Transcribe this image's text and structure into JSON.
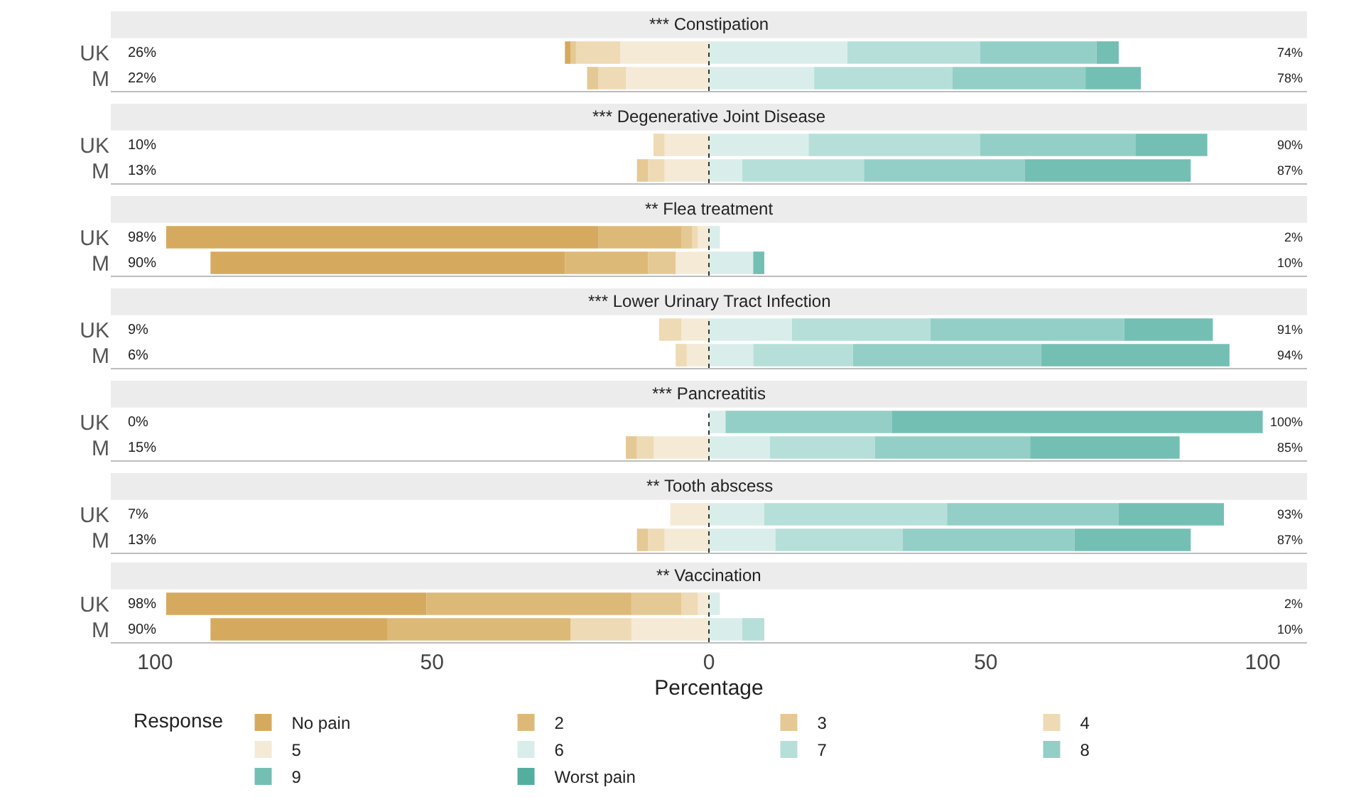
{
  "chart_data": [
    {
      "type": "bar",
      "orientation": "horizontal",
      "stacked": true,
      "title": "*** Constipation",
      "categories": [
        "UK",
        "M"
      ],
      "xlim": [
        -108,
        108
      ],
      "tick_labels": "y",
      "ref_lines": [
        {
          "axis": "x",
          "value": 0,
          "line_style": "dotted",
          "color": "#333333"
        }
      ],
      "totals": [
        [
          "26%",
          "74%"
        ],
        [
          "22%",
          "78%"
        ]
      ],
      "series": [
        {
          "color": "#f5ead6",
          "values": [
            -16,
            -15
          ]
        },
        {
          "color": "#eedab4",
          "values": [
            -8,
            -5
          ]
        },
        {
          "color": "#e5c994",
          "values": [
            -1,
            -2
          ]
        },
        {
          "color": "#ddb978",
          "values": [
            0,
            0
          ]
        },
        {
          "color": "#d6aa5e",
          "values": [
            -1,
            0
          ]
        },
        {
          "color": "#d9eeeb",
          "values": [
            25,
            19
          ]
        },
        {
          "color": "#b6dfd9",
          "values": [
            24,
            25
          ]
        },
        {
          "color": "#93cfc6",
          "values": [
            21,
            24
          ]
        },
        {
          "color": "#73bfb4",
          "values": [
            4,
            10
          ]
        },
        {
          "color": "#53ae9f",
          "values": [
            0,
            0
          ]
        }
      ]
    },
    {
      "type": "bar",
      "orientation": "horizontal",
      "stacked": true,
      "title": "*** Degenerative Joint Disease",
      "categories": [
        "UK",
        "M"
      ],
      "xlim": [
        -108,
        108
      ],
      "tick_labels": "y",
      "ref_lines": [
        {
          "axis": "x",
          "value": 0,
          "line_style": "dotted",
          "color": "#333333"
        }
      ],
      "totals": [
        [
          "10%",
          "90%"
        ],
        [
          "13%",
          "87%"
        ]
      ],
      "series": [
        {
          "color": "#f5ead6",
          "values": [
            -8,
            -8
          ]
        },
        {
          "color": "#eedab4",
          "values": [
            -2,
            -3
          ]
        },
        {
          "color": "#e5c994",
          "values": [
            0,
            -2
          ]
        },
        {
          "color": "#ddb978",
          "values": [
            0,
            0
          ]
        },
        {
          "color": "#d6aa5e",
          "values": [
            0,
            0
          ]
        },
        {
          "color": "#d9eeeb",
          "values": [
            18,
            6
          ]
        },
        {
          "color": "#b6dfd9",
          "values": [
            31,
            22
          ]
        },
        {
          "color": "#93cfc6",
          "values": [
            28,
            29
          ]
        },
        {
          "color": "#73bfb4",
          "values": [
            13,
            30
          ]
        },
        {
          "color": "#53ae9f",
          "values": [
            0,
            0
          ]
        }
      ]
    },
    {
      "type": "bar",
      "orientation": "horizontal",
      "stacked": true,
      "title": "** Flea treatment",
      "categories": [
        "UK",
        "M"
      ],
      "xlim": [
        -108,
        108
      ],
      "tick_labels": "y",
      "ref_lines": [
        {
          "axis": "x",
          "value": 0,
          "line_style": "dotted",
          "color": "#333333"
        }
      ],
      "totals": [
        [
          "98%",
          "2%"
        ],
        [
          "90%",
          "10%"
        ]
      ],
      "series": [
        {
          "color": "#f5ead6",
          "values": [
            -2,
            -6
          ]
        },
        {
          "color": "#eedab4",
          "values": [
            -1,
            0
          ]
        },
        {
          "color": "#e5c994",
          "values": [
            -2,
            -5
          ]
        },
        {
          "color": "#ddb978",
          "values": [
            -15,
            -15
          ]
        },
        {
          "color": "#d6aa5e",
          "values": [
            -78,
            -64
          ]
        },
        {
          "color": "#d9eeeb",
          "values": [
            2,
            8
          ]
        },
        {
          "color": "#b6dfd9",
          "values": [
            0,
            0
          ]
        },
        {
          "color": "#93cfc6",
          "values": [
            0,
            0
          ]
        },
        {
          "color": "#73bfb4",
          "values": [
            0,
            2
          ]
        },
        {
          "color": "#53ae9f",
          "values": [
            0,
            0
          ]
        }
      ]
    },
    {
      "type": "bar",
      "orientation": "horizontal",
      "stacked": true,
      "title": "*** Lower Urinary Tract Infection",
      "categories": [
        "UK",
        "M"
      ],
      "xlim": [
        -108,
        108
      ],
      "tick_labels": "y",
      "ref_lines": [
        {
          "axis": "x",
          "value": 0,
          "line_style": "dotted",
          "color": "#333333"
        }
      ],
      "totals": [
        [
          "9%",
          "91%"
        ],
        [
          "6%",
          "94%"
        ]
      ],
      "series": [
        {
          "color": "#f5ead6",
          "values": [
            -5,
            -4
          ]
        },
        {
          "color": "#eedab4",
          "values": [
            -4,
            -2
          ]
        },
        {
          "color": "#e5c994",
          "values": [
            0,
            0
          ]
        },
        {
          "color": "#ddb978",
          "values": [
            0,
            0
          ]
        },
        {
          "color": "#d6aa5e",
          "values": [
            0,
            0
          ]
        },
        {
          "color": "#d9eeeb",
          "values": [
            15,
            8
          ]
        },
        {
          "color": "#b6dfd9",
          "values": [
            25,
            18
          ]
        },
        {
          "color": "#93cfc6",
          "values": [
            35,
            34
          ]
        },
        {
          "color": "#73bfb4",
          "values": [
            16,
            34
          ]
        },
        {
          "color": "#53ae9f",
          "values": [
            0,
            0
          ]
        }
      ]
    },
    {
      "type": "bar",
      "orientation": "horizontal",
      "stacked": true,
      "title": "*** Pancreatitis",
      "categories": [
        "UK",
        "M"
      ],
      "xlim": [
        -108,
        108
      ],
      "tick_labels": "y",
      "ref_lines": [
        {
          "axis": "x",
          "value": 0,
          "line_style": "dotted",
          "color": "#333333"
        }
      ],
      "totals": [
        [
          "0%",
          "100%"
        ],
        [
          "15%",
          "85%"
        ]
      ],
      "series": [
        {
          "color": "#f5ead6",
          "values": [
            0,
            -10
          ]
        },
        {
          "color": "#eedab4",
          "values": [
            0,
            -3
          ]
        },
        {
          "color": "#e5c994",
          "values": [
            0,
            -2
          ]
        },
        {
          "color": "#ddb978",
          "values": [
            0,
            0
          ]
        },
        {
          "color": "#d6aa5e",
          "values": [
            0,
            0
          ]
        },
        {
          "color": "#d9eeeb",
          "values": [
            3,
            11
          ]
        },
        {
          "color": "#b6dfd9",
          "values": [
            0,
            19
          ]
        },
        {
          "color": "#93cfc6",
          "values": [
            30,
            28
          ]
        },
        {
          "color": "#73bfb4",
          "values": [
            67,
            27
          ]
        },
        {
          "color": "#53ae9f",
          "values": [
            0,
            0
          ]
        }
      ]
    },
    {
      "type": "bar",
      "orientation": "horizontal",
      "stacked": true,
      "title": "** Tooth abscess",
      "categories": [
        "UK",
        "M"
      ],
      "xlim": [
        -108,
        108
      ],
      "tick_labels": "y",
      "ref_lines": [
        {
          "axis": "x",
          "value": 0,
          "line_style": "dotted",
          "color": "#333333"
        }
      ],
      "totals": [
        [
          "7%",
          "93%"
        ],
        [
          "13%",
          "87%"
        ]
      ],
      "series": [
        {
          "color": "#f5ead6",
          "values": [
            -7,
            -8
          ]
        },
        {
          "color": "#eedab4",
          "values": [
            0,
            -3
          ]
        },
        {
          "color": "#e5c994",
          "values": [
            0,
            -2
          ]
        },
        {
          "color": "#ddb978",
          "values": [
            0,
            0
          ]
        },
        {
          "color": "#d6aa5e",
          "values": [
            0,
            0
          ]
        },
        {
          "color": "#d9eeeb",
          "values": [
            10,
            12
          ]
        },
        {
          "color": "#b6dfd9",
          "values": [
            33,
            23
          ]
        },
        {
          "color": "#93cfc6",
          "values": [
            31,
            31
          ]
        },
        {
          "color": "#73bfb4",
          "values": [
            19,
            21
          ]
        },
        {
          "color": "#53ae9f",
          "values": [
            0,
            0
          ]
        }
      ]
    },
    {
      "type": "bar",
      "orientation": "horizontal",
      "stacked": true,
      "title": "** Vaccination",
      "categories": [
        "UK",
        "M"
      ],
      "xlim": [
        -108,
        108
      ],
      "xticks": [
        {
          "value": -100,
          "label": "100"
        },
        {
          "value": -50,
          "label": "50"
        },
        0,
        50,
        100
      ],
      "xlabel": "Percentage",
      "legend": "bottom",
      "legend_title": "Response",
      "ref_lines": [
        {
          "axis": "x",
          "value": 0,
          "line_style": "dotted",
          "color": "#333333"
        }
      ],
      "totals": [
        [
          "98%",
          "2%"
        ],
        [
          "90%",
          "10%"
        ]
      ],
      "series": [
        {
          "name": "5",
          "color": "#f5ead6",
          "values": [
            -2,
            -14
          ]
        },
        {
          "name": "4",
          "color": "#eedab4",
          "values": [
            -3,
            -11
          ]
        },
        {
          "name": "3",
          "color": "#e5c994",
          "values": [
            -9,
            0
          ]
        },
        {
          "name": "2",
          "color": "#ddb978",
          "values": [
            -37,
            -33
          ]
        },
        {
          "name": "No pain",
          "color": "#d6aa5e",
          "values": [
            -47,
            -32
          ]
        },
        {
          "name": "6",
          "color": "#d9eeeb",
          "values": [
            2,
            6
          ]
        },
        {
          "name": "7",
          "color": "#b6dfd9",
          "values": [
            0,
            4
          ]
        },
        {
          "name": "8",
          "color": "#93cfc6",
          "values": [
            0,
            0
          ]
        },
        {
          "name": "9",
          "color": "#73bfb4",
          "values": [
            0,
            0
          ]
        },
        {
          "name": "Worst pain",
          "color": "#53ae9f",
          "values": [
            0,
            0
          ]
        }
      ]
    }
  ]
}
